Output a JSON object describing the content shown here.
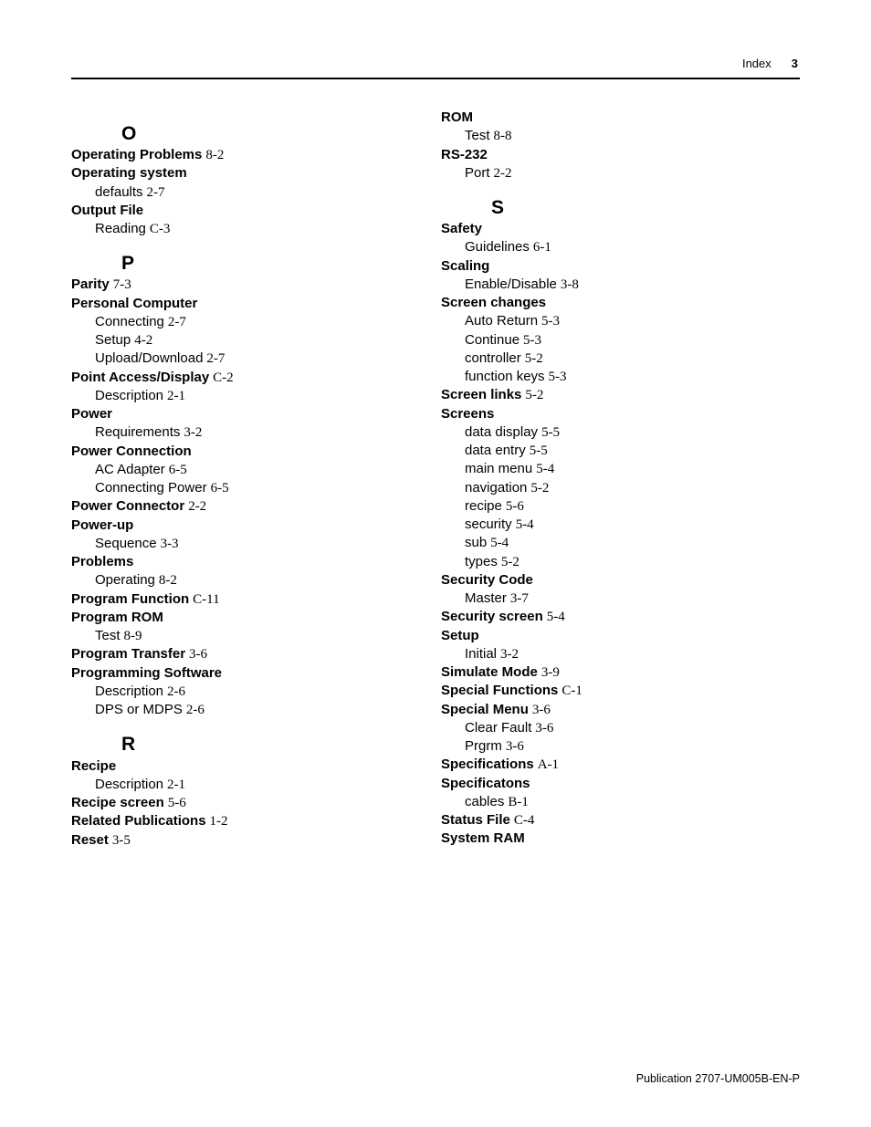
{
  "header": {
    "label": "Index",
    "page_number": "3"
  },
  "footer": "Publication 2707-UM005B-EN-P",
  "left_column": [
    {
      "type": "letter",
      "text": "O"
    },
    {
      "type": "top",
      "term": "Operating Problems",
      "ref": "8-2"
    },
    {
      "type": "top",
      "term": "Operating system"
    },
    {
      "type": "sub",
      "label": "defaults",
      "ref": "2-7"
    },
    {
      "type": "top",
      "term": "Output File"
    },
    {
      "type": "sub",
      "label": "Reading",
      "ref": "C-3"
    },
    {
      "type": "letter",
      "text": "P"
    },
    {
      "type": "top",
      "term": "Parity",
      "ref": "7-3"
    },
    {
      "type": "top",
      "term": "Personal Computer"
    },
    {
      "type": "sub",
      "label": "Connecting",
      "ref": "2-7"
    },
    {
      "type": "sub",
      "label": "Setup",
      "ref": "4-2"
    },
    {
      "type": "sub",
      "label": "Upload/Download",
      "ref": "2-7"
    },
    {
      "type": "top",
      "term": "Point Access/Display",
      "ref": "C-2"
    },
    {
      "type": "sub",
      "label": "Description",
      "ref": "2-1"
    },
    {
      "type": "top",
      "term": "Power"
    },
    {
      "type": "sub",
      "label": "Requirements",
      "ref": "3-2"
    },
    {
      "type": "top",
      "term": "Power Connection"
    },
    {
      "type": "sub",
      "label": "AC Adapter",
      "ref": "6-5"
    },
    {
      "type": "sub",
      "label": "Connecting Power",
      "ref": "6-5"
    },
    {
      "type": "top",
      "term": "Power Connector",
      "ref": "2-2"
    },
    {
      "type": "top",
      "term": "Power-up"
    },
    {
      "type": "sub",
      "label": "Sequence",
      "ref": "3-3"
    },
    {
      "type": "top",
      "term": "Problems"
    },
    {
      "type": "sub",
      "label": "Operating",
      "ref": "8-2"
    },
    {
      "type": "top",
      "term": "Program Function",
      "ref": "C-11"
    },
    {
      "type": "top",
      "term": "Program ROM"
    },
    {
      "type": "sub",
      "label": "Test",
      "ref": "8-9"
    },
    {
      "type": "top",
      "term": "Program Transfer",
      "ref": "3-6"
    },
    {
      "type": "top",
      "term": "Programming Software"
    },
    {
      "type": "sub",
      "label": "Description",
      "ref": "2-6"
    },
    {
      "type": "sub",
      "label": "DPS or MDPS",
      "ref": "2-6"
    },
    {
      "type": "letter",
      "text": "R"
    },
    {
      "type": "top",
      "term": "Recipe"
    },
    {
      "type": "sub",
      "label": "Description",
      "ref": "2-1"
    },
    {
      "type": "top",
      "term": "Recipe screen",
      "ref": "5-6"
    },
    {
      "type": "top",
      "term": "Related Publications",
      "ref": "1-2"
    },
    {
      "type": "top",
      "term": "Reset",
      "ref": "3-5"
    }
  ],
  "right_column": [
    {
      "type": "top",
      "term": "ROM"
    },
    {
      "type": "sub",
      "label": "Test",
      "ref": "8-8"
    },
    {
      "type": "top",
      "term": "RS-232"
    },
    {
      "type": "sub",
      "label": "Port",
      "ref": "2-2"
    },
    {
      "type": "letter",
      "text": "S"
    },
    {
      "type": "top",
      "term": "Safety"
    },
    {
      "type": "sub",
      "label": "Guidelines",
      "ref": "6-1"
    },
    {
      "type": "top",
      "term": "Scaling"
    },
    {
      "type": "sub",
      "label": "Enable/Disable",
      "ref": "3-8"
    },
    {
      "type": "top",
      "term": "Screen changes"
    },
    {
      "type": "sub",
      "label": "Auto Return",
      "ref": "5-3"
    },
    {
      "type": "sub",
      "label": "Continue",
      "ref": "5-3"
    },
    {
      "type": "sub",
      "label": "controller",
      "ref": "5-2"
    },
    {
      "type": "sub",
      "label": "function keys",
      "ref": "5-3"
    },
    {
      "type": "top",
      "term": "Screen links",
      "ref": "5-2"
    },
    {
      "type": "top",
      "term": "Screens"
    },
    {
      "type": "sub",
      "label": "data display",
      "ref": "5-5"
    },
    {
      "type": "sub",
      "label": "data entry",
      "ref": "5-5"
    },
    {
      "type": "sub",
      "label": "main menu",
      "ref": "5-4"
    },
    {
      "type": "sub",
      "label": "navigation",
      "ref": "5-2"
    },
    {
      "type": "sub",
      "label": "recipe",
      "ref": "5-6"
    },
    {
      "type": "sub",
      "label": "security",
      "ref": "5-4"
    },
    {
      "type": "sub",
      "label": "sub",
      "ref": "5-4"
    },
    {
      "type": "sub",
      "label": "types",
      "ref": "5-2"
    },
    {
      "type": "top",
      "term": "Security Code"
    },
    {
      "type": "sub",
      "label": "Master",
      "ref": "3-7"
    },
    {
      "type": "top",
      "term": "Security screen",
      "ref": "5-4"
    },
    {
      "type": "top",
      "term": "Setup"
    },
    {
      "type": "sub",
      "label": "Initial",
      "ref": "3-2"
    },
    {
      "type": "top",
      "term": "Simulate Mode",
      "ref": "3-9"
    },
    {
      "type": "top",
      "term": "Special Functions",
      "ref": "C-1"
    },
    {
      "type": "top",
      "term": "Special Menu",
      "ref": "3-6"
    },
    {
      "type": "sub",
      "label": "Clear Fault",
      "ref": "3-6"
    },
    {
      "type": "sub",
      "label": "Prgrm",
      "ref": "3-6"
    },
    {
      "type": "top",
      "term": "Specifications",
      "ref": "A-1"
    },
    {
      "type": "top",
      "term": "Specificatons"
    },
    {
      "type": "sub",
      "label": "cables",
      "ref": "B-1"
    },
    {
      "type": "top",
      "term": "Status File",
      "ref": "C-4"
    },
    {
      "type": "top",
      "term": "System RAM"
    }
  ]
}
